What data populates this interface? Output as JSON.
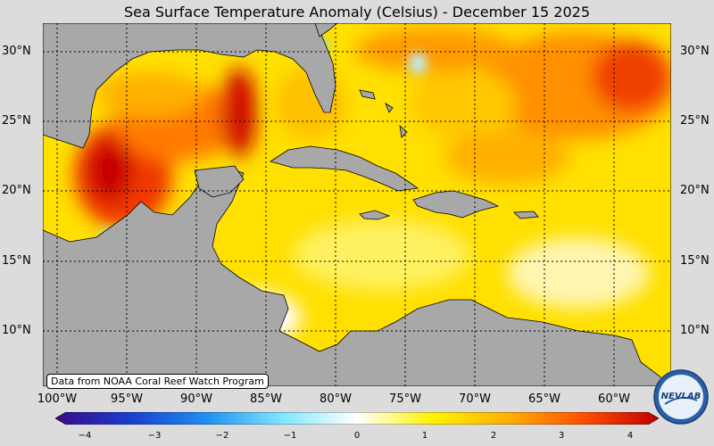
{
  "title": "Sea Surface Temperature Anomaly (Celsius) - December 15 2025",
  "credit": "Data from NOAA Coral Reef Watch Program",
  "lat_labels": [
    "30°N",
    "25°N",
    "20°N",
    "15°N",
    "10°N"
  ],
  "lon_labels": [
    "100°W",
    "95°W",
    "90°W",
    "85°W",
    "80°W",
    "75°W",
    "70°W",
    "65°W",
    "60°W"
  ],
  "colorbar": {
    "ticks": [
      "−4",
      "−3",
      "−2",
      "−1",
      "0",
      "1",
      "2",
      "3",
      "4"
    ],
    "range": [
      -4,
      4
    ],
    "colors": [
      "#3a0a8a",
      "#1a3ecf",
      "#1e8ff0",
      "#7fe6ff",
      "#ffffff",
      "#fff200",
      "#ffb000",
      "#ff5000",
      "#c00000"
    ]
  },
  "logo": {
    "text": "NEVLAB"
  },
  "colors": {
    "land": "#a8a8a8",
    "background": "#dcdcdc",
    "warm": "#ffd800",
    "hot": "#ff6a00",
    "cold": "#4fd8ff"
  }
}
